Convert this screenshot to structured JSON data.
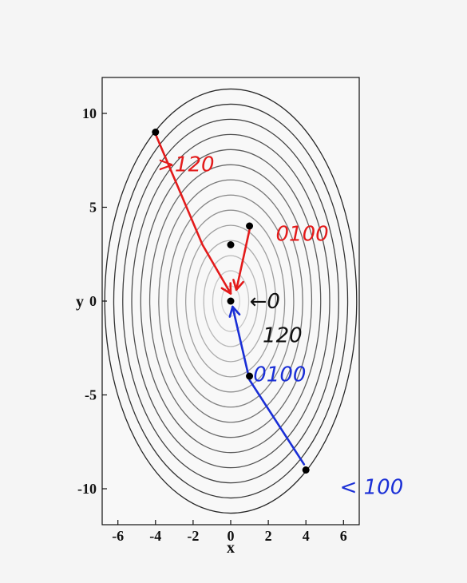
{
  "chart_data": {
    "type": "contour",
    "xlabel": "x",
    "ylabel": "y",
    "xlim": [
      -7,
      7
    ],
    "ylim": [
      -12,
      12
    ],
    "x_ticks": [
      -6,
      -4,
      -2,
      0,
      2,
      4,
      6
    ],
    "y_ticks": [
      -10,
      -5,
      0,
      5,
      10
    ],
    "contour_levels": {
      "shape": "ellipse",
      "center": [
        0,
        0
      ],
      "outer_semi_axes": [
        6.7,
        11.3
      ],
      "count": 14
    },
    "points": [
      {
        "x": -4,
        "y": 9
      },
      {
        "x": 1,
        "y": 4
      },
      {
        "x": 0,
        "y": 3
      },
      {
        "x": 0,
        "y": 0
      },
      {
        "x": 1,
        "y": -4
      },
      {
        "x": 4,
        "y": -9
      }
    ],
    "annotations": [
      {
        "text": ">120",
        "color": "#e31b1b",
        "at": [
          -3.9,
          7.3
        ]
      },
      {
        "text": "0100",
        "color": "#e31b1b",
        "at": [
          2.4,
          3.6
        ]
      },
      {
        "text": "←0",
        "color": "#111111",
        "at": [
          1.0,
          0
        ]
      },
      {
        "text": "120",
        "color": "#111111",
        "at": [
          1.7,
          -1.8
        ]
      },
      {
        "text": "0100",
        "color": "#1a2fd6",
        "at": [
          1.2,
          -3.9
        ]
      },
      {
        "text": "< 100",
        "color": "#1a2fd6",
        "at": [
          5.8,
          -9.9
        ]
      }
    ],
    "arrows": [
      {
        "color": "#e31b1b",
        "path": [
          [
            -4,
            8.9
          ],
          [
            -1.5,
            3
          ],
          [
            0,
            0.4
          ]
        ]
      },
      {
        "color": "#e31b1b",
        "path": [
          [
            1.0,
            3.8
          ],
          [
            0.3,
            0.6
          ]
        ]
      },
      {
        "color": "#1a2fd6",
        "path": [
          [
            3.9,
            -8.7
          ],
          [
            1.0,
            -4.2
          ],
          [
            0.1,
            -0.3
          ]
        ]
      }
    ]
  }
}
